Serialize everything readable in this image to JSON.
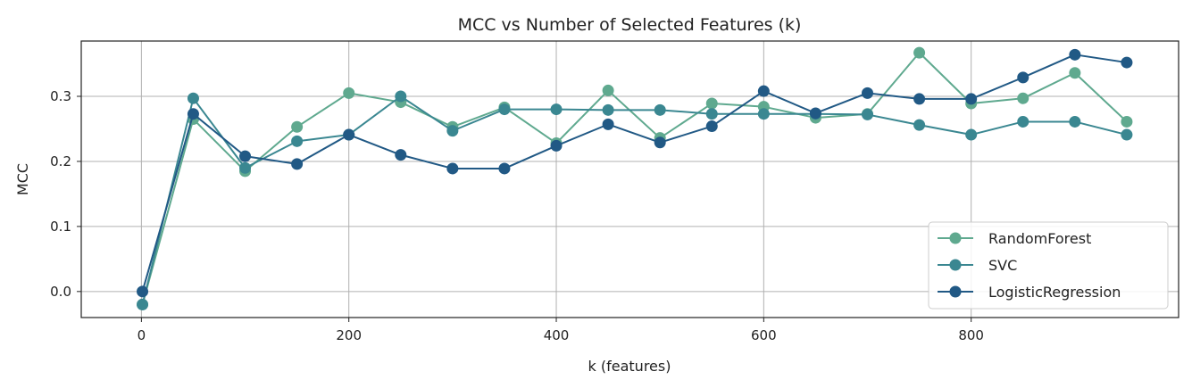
{
  "chart_data": {
    "type": "line",
    "title": "MCC vs Number of Selected Features (k)",
    "xlabel": "k (features)",
    "ylabel": "MCC",
    "xlim": [
      -58,
      1000
    ],
    "ylim": [
      -0.04,
      0.385
    ],
    "xticks": [
      0,
      200,
      400,
      600,
      800
    ],
    "yticks": [
      0.0,
      0.1,
      0.2,
      0.3
    ],
    "ytick_labels": [
      "0.0",
      "0.1",
      "0.2",
      "0.3"
    ],
    "grid": true,
    "legend_position": "lower-right",
    "x": [
      1,
      50,
      100,
      150,
      200,
      250,
      300,
      350,
      400,
      450,
      500,
      550,
      600,
      650,
      700,
      750,
      800,
      850,
      900,
      950
    ],
    "series": [
      {
        "name": "RandomForest",
        "color": "#5fa98f",
        "values": [
          -0.02,
          0.265,
          0.185,
          0.253,
          0.305,
          0.291,
          0.253,
          0.283,
          0.228,
          0.309,
          0.236,
          0.289,
          0.284,
          0.267,
          0.273,
          0.367,
          0.289,
          0.297,
          0.336,
          0.261
        ]
      },
      {
        "name": "SVC",
        "color": "#3a8791",
        "values": [
          -0.02,
          0.297,
          0.19,
          0.231,
          0.241,
          0.3,
          0.247,
          0.28,
          0.28,
          0.279,
          0.279,
          0.273,
          0.273,
          0.273,
          0.272,
          0.256,
          0.241,
          0.261,
          0.261,
          0.241
        ]
      },
      {
        "name": "LogisticRegression",
        "color": "#215985",
        "values": [
          0.0,
          0.273,
          0.208,
          0.196,
          0.241,
          0.21,
          0.189,
          0.189,
          0.224,
          0.257,
          0.229,
          0.254,
          0.308,
          0.274,
          0.305,
          0.296,
          0.296,
          0.329,
          0.364,
          0.352
        ]
      }
    ]
  }
}
